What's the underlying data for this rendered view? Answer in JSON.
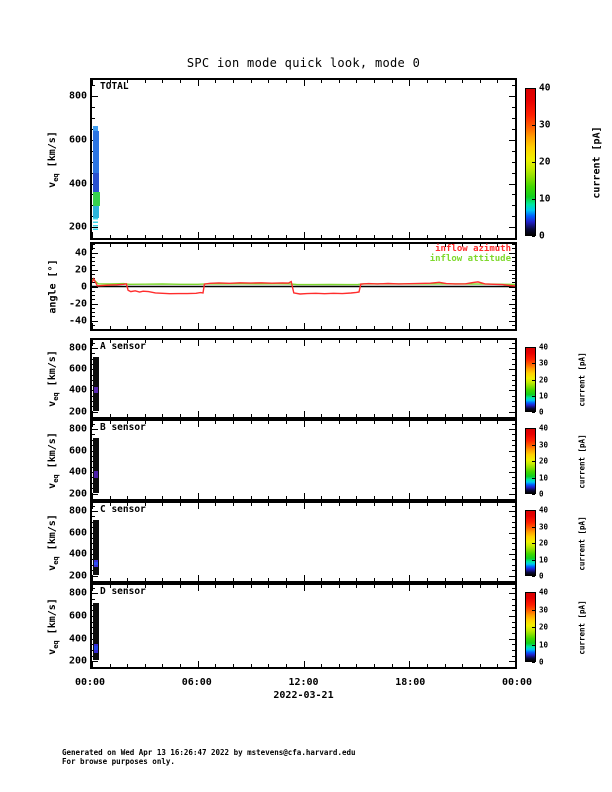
{
  "page": {
    "title": "SPC ion mode quick look, mode 0",
    "date_label": "2022-03-21",
    "footer_line1": "Generated on Wed Apr 13 16:26:47 2022 by mstevens@cfa.harvard.edu",
    "footer_line2": "For browse purposes only."
  },
  "axes": {
    "time_ticks": [
      "00:00",
      "06:00",
      "12:00",
      "18:00",
      "00:00"
    ],
    "velocity_label": {
      "pre": "v",
      "sub": "eq",
      "post": " [km/s]"
    },
    "angle_label": "angle [°]",
    "colorbar_label": "current [pA]",
    "colorbar_ticks": [
      0,
      10,
      20,
      30,
      40
    ],
    "colorbar_range": [
      0,
      40
    ]
  },
  "panels": [
    {
      "id": "total",
      "label": "TOTAL"
    },
    {
      "id": "angle",
      "label": ""
    },
    {
      "id": "a",
      "label": "A sensor"
    },
    {
      "id": "b",
      "label": "B sensor"
    },
    {
      "id": "c",
      "label": "C sensor"
    },
    {
      "id": "d",
      "label": "D sensor"
    }
  ],
  "legend": [
    {
      "label": "inflow azimuth",
      "color": "#ff2d2d"
    },
    {
      "label": "inflow attitude",
      "color": "#7fd92e"
    }
  ],
  "chart_data": [
    {
      "id": "total",
      "type": "heatmap",
      "title": "TOTAL",
      "ylabel": "veq [km/s]",
      "ylim": [
        150,
        875
      ],
      "y_tick_labels": [
        200,
        400,
        600,
        800
      ],
      "y_minor_step": 50,
      "y_major_step": 200,
      "xlim_hours": [
        0,
        24
      ],
      "x_minor_step_h": 1,
      "x_major_step_h": 6,
      "colorbar": {
        "label": "current [pA]",
        "ticks": [
          0,
          10,
          20,
          30,
          40
        ]
      },
      "data_note": "spectrogram signal only near 00:05-00:25 UT, v from ~185 to ~665 km/s",
      "segments": [
        {
          "t_start_h": 0.08,
          "t_end_h": 0.33,
          "v_top": 663,
          "v_bottom": 640,
          "current_pA": 4,
          "color": "#3f9ef2"
        },
        {
          "t_start_h": 0.06,
          "t_end_h": 0.4,
          "v_top": 640,
          "v_bottom": 447,
          "current_pA": 3,
          "color": "#2b74e2"
        },
        {
          "t_start_h": 0.06,
          "t_end_h": 0.4,
          "v_top": 447,
          "v_bottom": 363,
          "current_pA": 2.5,
          "color": "#2a50cf"
        },
        {
          "t_start_h": 0.03,
          "t_end_h": 0.46,
          "v_top": 363,
          "v_bottom": 297,
          "current_pA": 10,
          "color": "#36d24e"
        },
        {
          "t_start_h": 0.06,
          "t_end_h": 0.42,
          "v_top": 297,
          "v_bottom": 243,
          "current_pA": 6,
          "color": "#2ab4dc"
        },
        {
          "t_start_h": 0.08,
          "t_end_h": 0.36,
          "v_top": 243,
          "v_bottom": 186,
          "current_pA": 5,
          "color": "#38d4ea",
          "dashed": true
        }
      ]
    },
    {
      "id": "angle",
      "type": "line",
      "ylabel": "angle [°]",
      "ylim": [
        -50,
        50
      ],
      "y_tick_labels": [
        -40,
        -20,
        0,
        20,
        40
      ],
      "y_minor_step": 5,
      "y_major_step": 20,
      "xlim_hours": [
        0,
        24
      ],
      "x_minor_step_h": 1,
      "x_major_step_h": 6,
      "zero_line": true,
      "series": [
        {
          "name": "inflow azimuth",
          "color": "#ff2d2d",
          "points_h_deg": [
            [
              0,
              5
            ],
            [
              0.1,
              9
            ],
            [
              0.3,
              0.8
            ],
            [
              0.6,
              1.2
            ],
            [
              1.0,
              1.6
            ],
            [
              1.4,
              2.0
            ],
            [
              1.8,
              2.6
            ],
            [
              1.95,
              3.0
            ],
            [
              2.05,
              -4.5
            ],
            [
              2.2,
              -6.0
            ],
            [
              2.45,
              -5.0
            ],
            [
              2.7,
              -6.5
            ],
            [
              2.9,
              -5.5
            ],
            [
              3.2,
              -6.0
            ],
            [
              3.6,
              -7.5
            ],
            [
              4.0,
              -8.0
            ],
            [
              4.4,
              -8.5
            ],
            [
              4.9,
              -8.3
            ],
            [
              5.4,
              -8.4
            ],
            [
              5.9,
              -8.0
            ],
            [
              6.15,
              -7.2
            ],
            [
              6.3,
              -7.6
            ],
            [
              6.38,
              2.8
            ],
            [
              6.7,
              3.8
            ],
            [
              7.2,
              4.2
            ],
            [
              7.8,
              3.8
            ],
            [
              8.4,
              4.4
            ],
            [
              9.0,
              4.0
            ],
            [
              9.6,
              4.3
            ],
            [
              10.2,
              3.9
            ],
            [
              10.8,
              4.2
            ],
            [
              11.15,
              4.0
            ],
            [
              11.3,
              5.8
            ],
            [
              11.45,
              -7.5
            ],
            [
              11.8,
              -8.8
            ],
            [
              12.2,
              -8.4
            ],
            [
              12.7,
              -8.0
            ],
            [
              13.2,
              -8.5
            ],
            [
              13.7,
              -8.0
            ],
            [
              14.2,
              -8.3
            ],
            [
              14.7,
              -7.6
            ],
            [
              15.0,
              -7.0
            ],
            [
              15.15,
              -6.5
            ],
            [
              15.25,
              2.8
            ],
            [
              15.7,
              3.4
            ],
            [
              16.2,
              3.0
            ],
            [
              16.8,
              3.5
            ],
            [
              17.4,
              3.1
            ],
            [
              18.0,
              3.3
            ],
            [
              18.6,
              3.6
            ],
            [
              19.2,
              3.9
            ],
            [
              19.7,
              5.0
            ],
            [
              20.1,
              3.4
            ],
            [
              20.6,
              3.0
            ],
            [
              21.2,
              3.2
            ],
            [
              21.6,
              4.6
            ],
            [
              21.9,
              5.4
            ],
            [
              22.3,
              3.0
            ],
            [
              22.8,
              2.6
            ],
            [
              23.3,
              2.2
            ],
            [
              23.7,
              1.2
            ],
            [
              24,
              0.6
            ]
          ]
        },
        {
          "name": "inflow attitude",
          "color": "#7fd92e",
          "points_h_deg": [
            [
              0,
              8.5
            ],
            [
              0.15,
              7.0
            ],
            [
              0.35,
              3.2
            ],
            [
              1.0,
              3.0
            ],
            [
              1.8,
              3.4
            ],
            [
              2.1,
              2.6
            ],
            [
              3.0,
              2.7
            ],
            [
              4.0,
              2.9
            ],
            [
              5.0,
              2.6
            ],
            [
              6.0,
              2.6
            ],
            [
              6.5,
              3.0
            ],
            [
              7.5,
              3.1
            ],
            [
              8.5,
              3.2
            ],
            [
              9.5,
              3.0
            ],
            [
              10.5,
              3.2
            ],
            [
              11.2,
              3.0
            ],
            [
              11.6,
              2.3
            ],
            [
              12.5,
              2.2
            ],
            [
              13.5,
              2.3
            ],
            [
              14.5,
              2.2
            ],
            [
              15.1,
              2.3
            ],
            [
              15.4,
              3.0
            ],
            [
              16.5,
              3.1
            ],
            [
              17.5,
              3.0
            ],
            [
              18.5,
              3.1
            ],
            [
              19.5,
              3.0
            ],
            [
              20.5,
              3.0
            ],
            [
              21.5,
              2.9
            ],
            [
              22.5,
              2.8
            ],
            [
              23.5,
              2.6
            ],
            [
              24,
              2.5
            ]
          ]
        }
      ]
    },
    {
      "id": "a",
      "type": "heatmap",
      "title": "A sensor",
      "ylabel": "veq [km/s]",
      "ylim": [
        150,
        875
      ],
      "y_tick_labels": [
        200,
        400,
        600,
        800
      ],
      "y_minor_step": 50,
      "y_major_step": 200,
      "xlim_hours": [
        0,
        24
      ],
      "x_minor_step_h": 1,
      "x_major_step_h": 6,
      "colorbar": {
        "label": "current [pA]",
        "ticks": [
          0,
          10,
          20,
          30,
          40
        ]
      },
      "data_note": "dark low-current strip near 00:05-00:25 UT with faint purple blob near 400 km/s",
      "segments": [
        {
          "t_start_h": 0.08,
          "t_end_h": 0.38,
          "v_top": 718,
          "v_bottom": 208,
          "current_pA": 0.5,
          "color": "#0c0c0c"
        },
        {
          "t_start_h": 0.1,
          "t_end_h": 0.34,
          "v_top": 432,
          "v_bottom": 372,
          "current_pA": 2,
          "color": "#5a28b4"
        }
      ]
    },
    {
      "id": "b",
      "type": "heatmap",
      "title": "B sensor",
      "ylabel": "veq [km/s]",
      "ylim": [
        150,
        875
      ],
      "y_tick_labels": [
        200,
        400,
        600,
        800
      ],
      "y_minor_step": 50,
      "y_major_step": 200,
      "xlim_hours": [
        0,
        24
      ],
      "x_minor_step_h": 1,
      "x_major_step_h": 6,
      "colorbar": {
        "label": "current [pA]",
        "ticks": [
          0,
          10,
          20,
          30,
          40
        ]
      },
      "data_note": "dark low-current strip near 00:05-00:25 UT with faint purple blob near 380 km/s",
      "segments": [
        {
          "t_start_h": 0.08,
          "t_end_h": 0.38,
          "v_top": 718,
          "v_bottom": 208,
          "current_pA": 0.5,
          "color": "#0c0c0c"
        },
        {
          "t_start_h": 0.1,
          "t_end_h": 0.34,
          "v_top": 412,
          "v_bottom": 348,
          "current_pA": 2,
          "color": "#4c20a8"
        }
      ]
    },
    {
      "id": "c",
      "type": "heatmap",
      "title": "C sensor",
      "ylabel": "veq [km/s]",
      "ylim": [
        150,
        875
      ],
      "y_tick_labels": [
        200,
        400,
        600,
        800
      ],
      "y_minor_step": 50,
      "y_major_step": 200,
      "xlim_hours": [
        0,
        24
      ],
      "x_minor_step_h": 1,
      "x_major_step_h": 6,
      "colorbar": {
        "label": "current [pA]",
        "ticks": [
          0,
          10,
          20,
          30,
          40
        ]
      },
      "data_note": "dark low-current strip near 00:05-00:25 UT with blue blob near 315 km/s",
      "segments": [
        {
          "t_start_h": 0.08,
          "t_end_h": 0.38,
          "v_top": 718,
          "v_bottom": 208,
          "current_pA": 0.5,
          "color": "#0c0c0c"
        },
        {
          "t_start_h": 0.1,
          "t_end_h": 0.34,
          "v_top": 348,
          "v_bottom": 282,
          "current_pA": 3,
          "color": "#3c30d8"
        },
        {
          "t_start_h": 0.12,
          "t_end_h": 0.32,
          "v_top": 330,
          "v_bottom": 300,
          "current_pA": 4,
          "color": "#2b50f2"
        }
      ]
    },
    {
      "id": "d",
      "type": "heatmap",
      "title": "D sensor",
      "ylabel": "veq [km/s]",
      "ylim": [
        150,
        875
      ],
      "y_tick_labels": [
        200,
        400,
        600,
        800
      ],
      "y_minor_step": 50,
      "y_major_step": 200,
      "xlim_hours": [
        0,
        24
      ],
      "x_minor_step_h": 1,
      "x_major_step_h": 6,
      "colorbar": {
        "label": "current [pA]",
        "ticks": [
          0,
          10,
          20,
          30,
          40
        ]
      },
      "data_note": "dark low-current strip near 00:05-00:25 UT with blue blob near 315 km/s",
      "segments": [
        {
          "t_start_h": 0.08,
          "t_end_h": 0.38,
          "v_top": 718,
          "v_bottom": 208,
          "current_pA": 0.5,
          "color": "#0c0c0c"
        },
        {
          "t_start_h": 0.1,
          "t_end_h": 0.34,
          "v_top": 350,
          "v_bottom": 278,
          "current_pA": 3,
          "color": "#3328d4"
        },
        {
          "t_start_h": 0.12,
          "t_end_h": 0.32,
          "v_top": 335,
          "v_bottom": 300,
          "current_pA": 4,
          "color": "#2244e8"
        }
      ]
    }
  ]
}
